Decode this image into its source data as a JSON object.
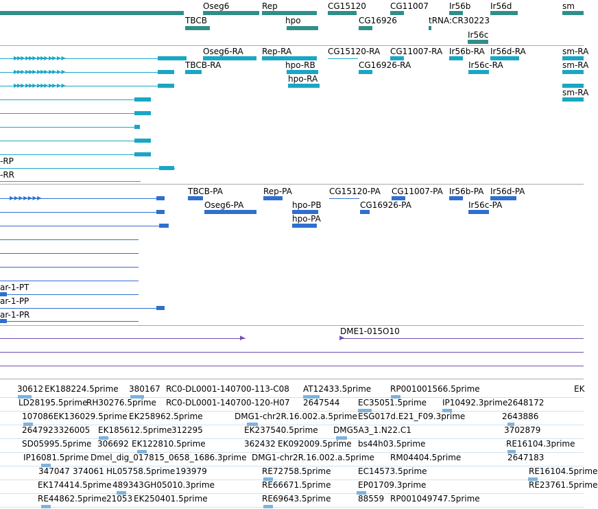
{
  "colors": {
    "gene": "#2f8f88",
    "transcript_a": "#1aa6c4",
    "transcript_b": "#2f6fd0",
    "region": "#6f4fb0",
    "est": "#7eb3dc",
    "separator": "#a9a9a9"
  },
  "gene_track": {
    "labels": [
      "Oseg6",
      "Rep",
      "CG15120",
      "CG11007",
      "Ir56b",
      "Ir56d",
      "sm",
      "TBCB",
      "hpo",
      "CG16926",
      "tRNA:CR30223",
      "Ir56c"
    ]
  },
  "transcript_track_a": {
    "labels": [
      "Oseg6-RA",
      "Rep-RA",
      "CG15120-RA",
      "CG11007-RA",
      "Ir56b-RA",
      "Ir56d-RA",
      "sm-RA",
      "TBCB-RA",
      "hpo-RB",
      "CG16926-RA",
      "Ir56c-RA",
      "sm-RA",
      "hpo-RA",
      "sm-RA",
      "-RP",
      "-RR"
    ]
  },
  "transcript_track_b": {
    "labels": [
      "TBCB-PA",
      "Rep-PA",
      "CG15120-PA",
      "CG11007-PA",
      "Ir56b-PA",
      "Ir56d-PA",
      "Oseg6-PA",
      "hpo-PB",
      "CG16926-PA",
      "Ir56c-PA",
      "hpo-PA",
      "ar-1-PT",
      "ar-1-PP",
      "ar-1-PR"
    ]
  },
  "region_track": {
    "labels": [
      "DME1-015O10"
    ]
  },
  "est_track": {
    "labels": [
      "30612",
      "EK188224.5prime",
      "380167",
      "RC0-DL0001-140700-113-C08",
      "AT12433.5prime",
      "RP001001566.5prime",
      "EK",
      "LD28195.5prime",
      "RH30276.5prime",
      "RC0-DL0001-140700-120-H07",
      "2647544",
      "EC3505",
      "1.5prime",
      "IP10492.3prime",
      "2648172",
      "107086",
      "EK136029.5prime",
      "EK258962.5prime",
      "DMG1-chr2R.16.002.a.5prime",
      "ESG017d.E21_F09.3prime",
      "2643886",
      "2647923326005",
      "EK185612.5prime",
      "312295",
      "EK237540.5prime",
      "DMG5A3_1.N22.C1",
      "3702879",
      "SD05995.5prime",
      "306692",
      "EK122810.5prime",
      "362432",
      "EK092009.5prime",
      "bs44h03.5prime",
      "RE16104.3prime",
      "IP16081.5prime",
      "Dmel_dig_017815_0658_1686.3prime",
      "DMG1-chr2R.16.002.a.5prime",
      "RM04404.5prime",
      "2647183",
      "347047",
      "374061",
      "HL05758.5prime",
      "193979",
      "RE72758.5prime",
      "EC14573.5prime",
      "RE16104.5prime",
      "EK174414.5prime",
      "489343",
      "GH05010.3prime",
      "RE66671.5prime",
      "EP01709.3prime",
      "RE23761.5prime",
      "RE44862.5prime",
      "21053",
      "EK250401.5prime",
      "RE69643.5prime",
      "88559",
      "RP001049747.5prime"
    ]
  }
}
